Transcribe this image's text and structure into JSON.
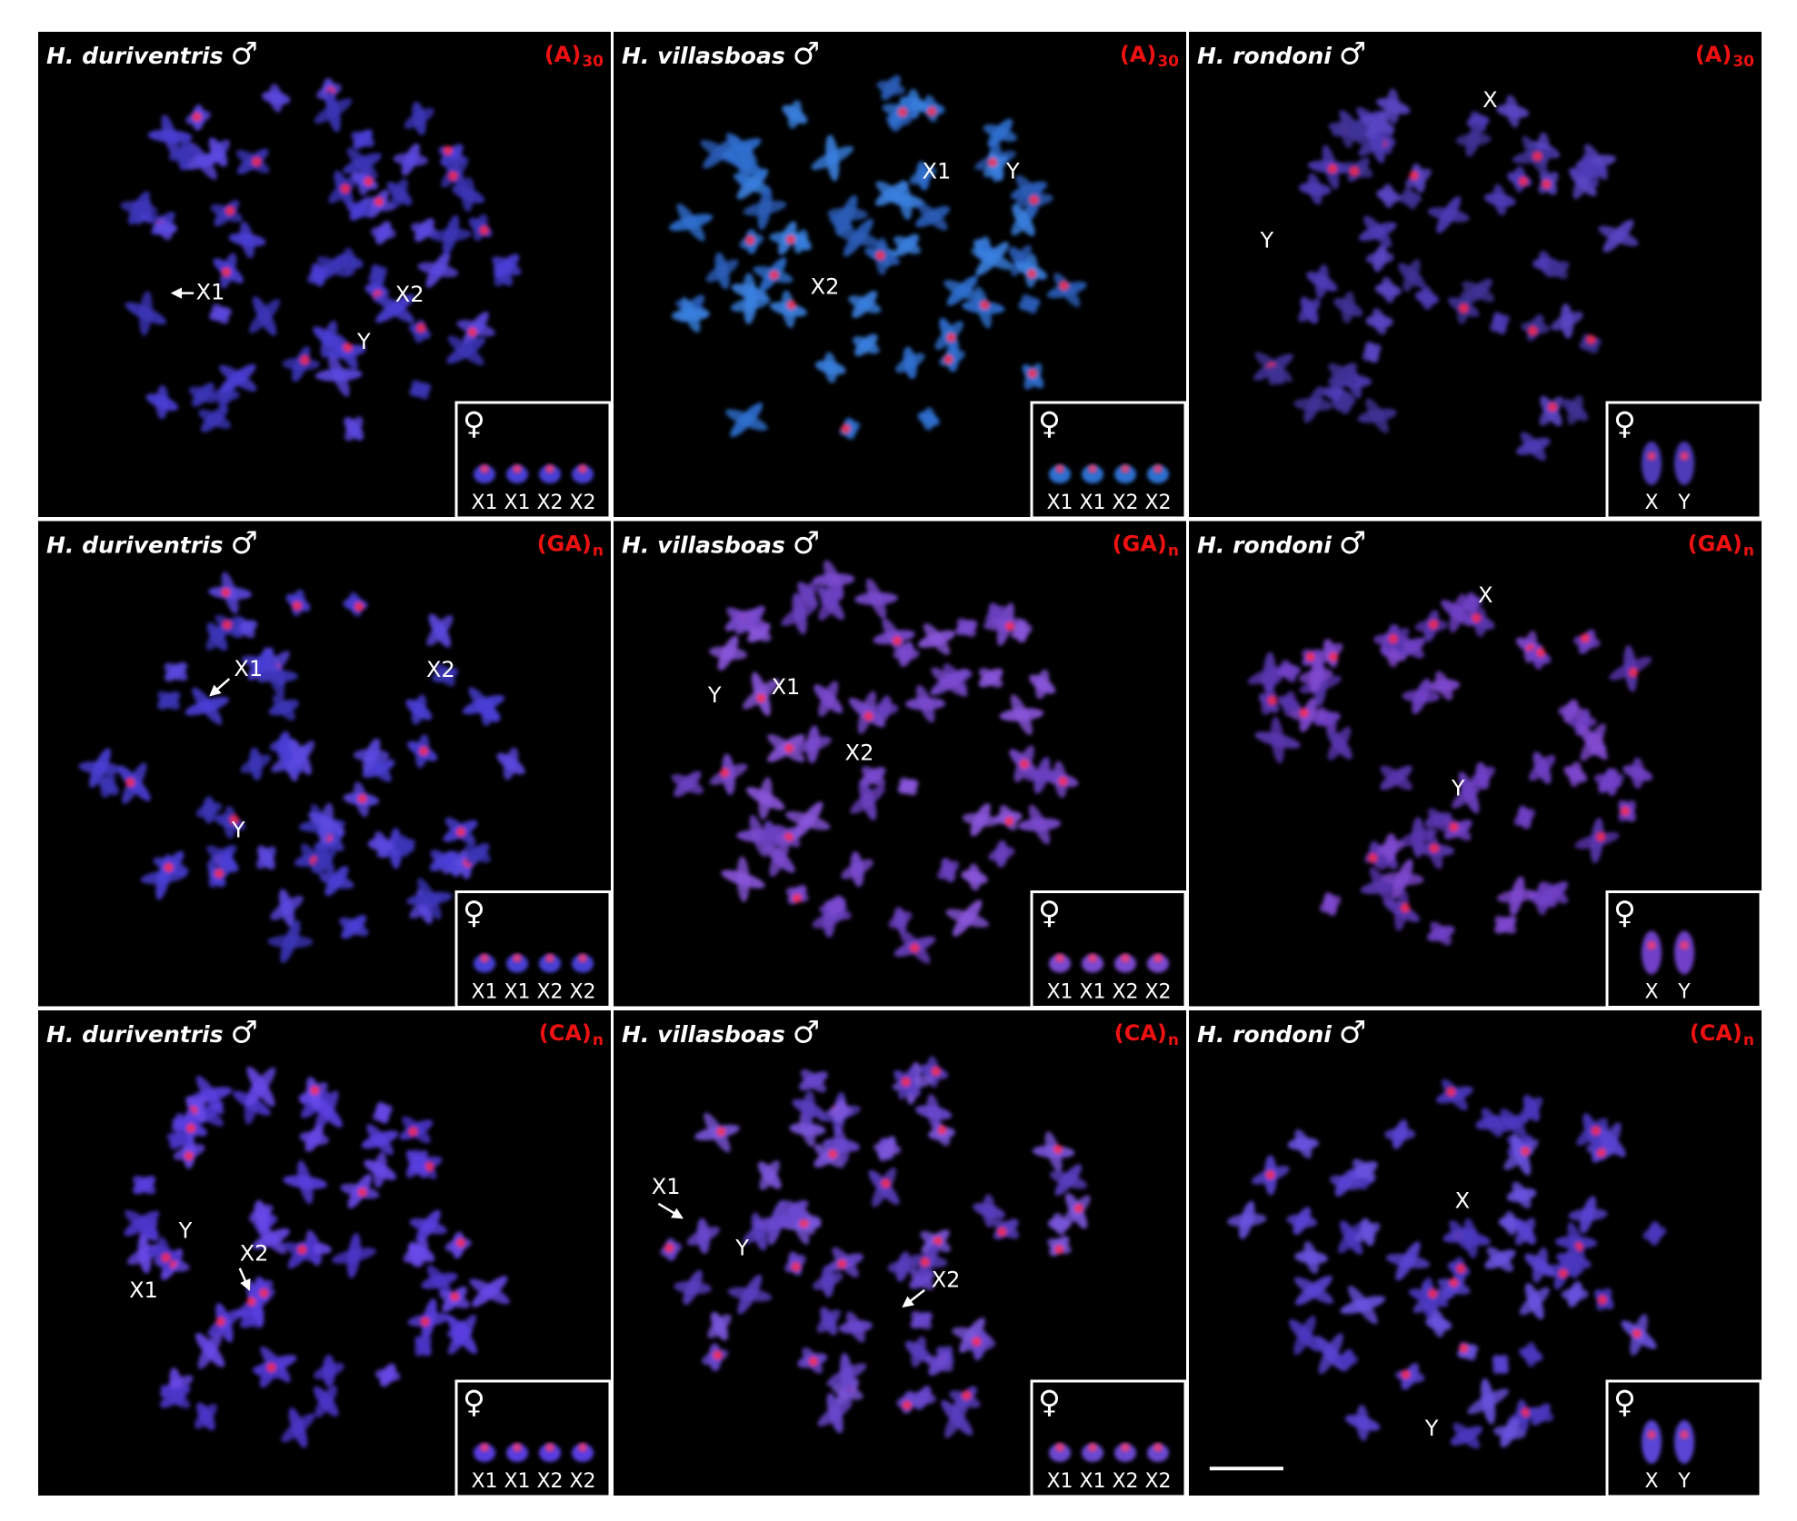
{
  "panels": [
    {
      "species": "H. duriventris",
      "sex": "♂",
      "probe": "(A)",
      "probe_sub": "30",
      "labels": [
        "X1",
        "X2",
        "Y"
      ],
      "inset_sex": "♀",
      "inset_labels": [
        "X1",
        "X1",
        "X2",
        "X2"
      ]
    },
    {
      "species": "H. villasboas",
      "sex": "♂",
      "probe": "(A)",
      "probe_sub": "30",
      "labels": [
        "X1",
        "Y",
        "X2"
      ],
      "inset_sex": "♀",
      "inset_labels": [
        "X1",
        "X1",
        "X2",
        "X2"
      ]
    },
    {
      "species": "H. rondoni",
      "sex": "♂",
      "probe": "(A)",
      "probe_sub": "30",
      "labels": [
        "X",
        "Y"
      ],
      "inset_sex": "♀",
      "inset_labels": [
        "X",
        "Y"
      ]
    },
    {
      "species": "H. duriventris",
      "sex": "♂",
      "probe": "(GA)",
      "probe_sub": "n",
      "labels": [
        "X1",
        "X2",
        "Y"
      ],
      "inset_sex": "♀",
      "inset_labels": [
        "X1",
        "X1",
        "X2",
        "X2"
      ]
    },
    {
      "species": "H. villasboas",
      "sex": "♂",
      "probe": "(GA)",
      "probe_sub": "n",
      "labels": [
        "Y",
        "X1",
        "X2"
      ],
      "inset_sex": "♀",
      "inset_labels": [
        "X1",
        "X1",
        "X2",
        "X2"
      ]
    },
    {
      "species": "H. rondoni",
      "sex": "♂",
      "probe": "(GA)",
      "probe_sub": "n",
      "labels": [
        "X",
        "Y"
      ],
      "inset_sex": "♀",
      "inset_labels": [
        "X",
        "Y"
      ]
    },
    {
      "species": "H. duriventris",
      "sex": "♂",
      "probe": "(CA)",
      "probe_sub": "n",
      "labels": [
        "Y",
        "X2",
        "X1"
      ],
      "inset_sex": "♀",
      "inset_labels": [
        "X1",
        "X1",
        "X2",
        "X2"
      ]
    },
    {
      "species": "H. villasboas",
      "sex": "♂",
      "probe": "(CA)",
      "probe_sub": "n",
      "labels": [
        "X1",
        "Y",
        "X2"
      ],
      "inset_sex": "♀",
      "inset_labels": [
        "X1",
        "X1",
        "X2",
        "X2"
      ]
    },
    {
      "species": "H. rondoni",
      "sex": "♂",
      "probe": "(CA)",
      "probe_sub": "n",
      "labels": [
        "X",
        "Y"
      ],
      "inset_sex": "♀",
      "inset_labels": [
        "X",
        "Y"
      ]
    }
  ]
}
